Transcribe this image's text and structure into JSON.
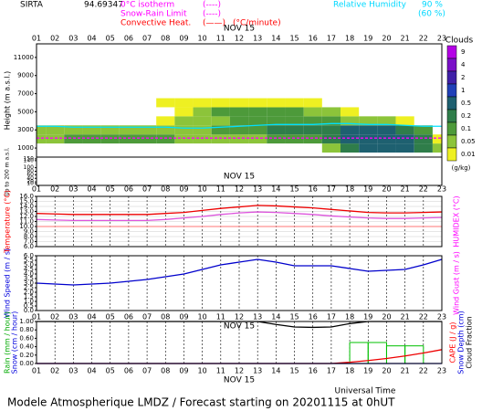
{
  "chart_data": [
    {
      "type": "heatmap",
      "site": "SIRTA",
      "coords": "94.69347",
      "date": "NOV 15",
      "categories": [
        "01",
        "02",
        "03",
        "04",
        "05",
        "06",
        "07",
        "08",
        "09",
        "10",
        "11",
        "12",
        "13",
        "14",
        "15",
        "16",
        "17",
        "18",
        "19",
        "20",
        "21",
        "22",
        "23"
      ],
      "legend": [
        {
          "name": "0°C isotherm",
          "symbol": "(----)",
          "color": "#ff00ff"
        },
        {
          "name": "Snow-Rain Limit",
          "symbol": "(----)",
          "color": "#ff00ff"
        },
        {
          "name": "Convective Heat.",
          "symbol": "(——)",
          "unit": "(°C/minute)",
          "color": "#ff0000"
        },
        {
          "name": "Relative Humidity",
          "symbol": "90 %",
          "symbol2": "(60 %)",
          "color": "#00e0ff"
        }
      ],
      "ylabel": "Height (m a.s.l.)",
      "y2label": "Up to 200 m a.s.l.",
      "ylim": [
        0,
        12500
      ],
      "yticks": [
        1000,
        3000,
        5000,
        7000,
        9000,
        11000
      ],
      "y2lim": [
        0,
        160
      ],
      "y2ticks": [
        10,
        20,
        40,
        60,
        80,
        100,
        140,
        150
      ],
      "rows": [
        1000,
        2000,
        3000,
        4000,
        5000,
        6000
      ],
      "values": [
        [
          0,
          0,
          0,
          0,
          0,
          0,
          0,
          0,
          0,
          0,
          0,
          0,
          0,
          0,
          0,
          0,
          0.05,
          0.2,
          0.5,
          0.5,
          0.5,
          0.2,
          0.05
        ],
        [
          0.05,
          0.05,
          0.1,
          0.1,
          0.1,
          0.1,
          0.1,
          0.1,
          0.05,
          0.05,
          0.05,
          0.05,
          0.05,
          0.1,
          0.1,
          0.1,
          0.2,
          0.5,
          0.5,
          0.5,
          0.5,
          0.2,
          0.01
        ],
        [
          0.05,
          0.05,
          0.05,
          0.05,
          0.05,
          0.05,
          0.05,
          0.05,
          0.05,
          0.05,
          0.1,
          0.1,
          0.1,
          0.2,
          0.2,
          0.2,
          0.2,
          0.5,
          0.5,
          0.5,
          0.2,
          0.1,
          0
        ],
        [
          0,
          0,
          0,
          0,
          0,
          0,
          0,
          0.01,
          0.05,
          0.05,
          0.05,
          0.1,
          0.1,
          0.1,
          0.1,
          0.1,
          0.1,
          0.05,
          0.05,
          0.05,
          0.01,
          0,
          0
        ],
        [
          0,
          0,
          0,
          0,
          0,
          0,
          0,
          0,
          0.01,
          0.05,
          0.1,
          0.1,
          0.1,
          0.1,
          0.1,
          0.05,
          0.05,
          0.01,
          0,
          0,
          0,
          0,
          0
        ],
        [
          0,
          0,
          0,
          0,
          0,
          0,
          0,
          0.01,
          0.01,
          0.01,
          0.01,
          0.01,
          0.01,
          0.01,
          0.01,
          0.01,
          0,
          0,
          0,
          0,
          0,
          0,
          0
        ]
      ],
      "colorbar": {
        "title": "Clouds",
        "unit": "(g/kg)",
        "levels": [
          9,
          4,
          2,
          1,
          0.5,
          0.2,
          0.1,
          0.05,
          0.01
        ],
        "colors": [
          "#b400e6",
          "#7a10c8",
          "#4020a8",
          "#2040b8",
          "#1e6070",
          "#2f7d4a",
          "#4d9a3a",
          "#8cc43a",
          "#eef022"
        ]
      },
      "series": [
        {
          "color": "#ff00ff",
          "values": [
            2100,
            2100,
            2100,
            2100,
            2100,
            2100,
            2100,
            2100,
            2100,
            2100,
            2100,
            2100,
            2100,
            2100,
            2100,
            2100,
            2100,
            2100,
            2100,
            2100,
            2100,
            2100,
            2100
          ]
        },
        {
          "color": "#00e0ff",
          "values": [
            3400,
            3400,
            3300,
            3300,
            3300,
            3300,
            3300,
            3300,
            3200,
            3200,
            3300,
            3400,
            3500,
            3600,
            3600,
            3600,
            3700,
            3700,
            3600,
            3600,
            3500,
            3400,
            3400
          ]
        }
      ]
    },
    {
      "type": "line",
      "date": "NOV 15",
      "categories": [
        "01",
        "02",
        "03",
        "04",
        "05",
        "06",
        "07",
        "08",
        "09",
        "10",
        "11",
        "12",
        "13",
        "14",
        "15",
        "16",
        "17",
        "18",
        "19",
        "20",
        "21",
        "22",
        "23"
      ],
      "ylabel": "Temperature (°C)",
      "ylabel_color": "#ff0000",
      "y2label": "HUMIDEX (°C)",
      "y2label_color": "#ff00ff",
      "ylim": [
        6,
        16
      ],
      "yticks": [
        {
          "value": 6,
          "label": "6.0"
        },
        {
          "value": 7,
          "label": "7.0"
        },
        {
          "value": 8,
          "label": "8.0"
        },
        {
          "value": 9,
          "label": "9.0"
        },
        {
          "value": 10,
          "label": "10.0"
        },
        {
          "value": 11,
          "label": "11.0"
        },
        {
          "value": 12,
          "label": "12.0"
        },
        {
          "value": 13,
          "label": "13.0"
        },
        {
          "value": 14,
          "label": "14.0"
        },
        {
          "value": 15,
          "label": "15.0"
        },
        {
          "value": 16,
          "label": "16.0"
        }
      ],
      "series": [
        {
          "color": "#ee0000",
          "values": [
            12.6,
            12.5,
            12.4,
            12.4,
            12.4,
            12.4,
            12.4,
            12.6,
            12.8,
            13.2,
            13.6,
            13.9,
            14.2,
            14.1,
            13.9,
            13.7,
            13.4,
            13.1,
            12.8,
            12.7,
            12.7,
            12.8,
            12.9
          ]
        },
        {
          "color": "#dd55dd",
          "values": [
            11.4,
            11.3,
            11.2,
            11.2,
            11.2,
            11.2,
            11.2,
            11.4,
            11.7,
            12.0,
            12.4,
            12.7,
            12.9,
            12.8,
            12.6,
            12.4,
            12.1,
            11.9,
            11.7,
            11.6,
            11.6,
            11.7,
            11.8
          ]
        },
        {
          "color": "#ff9090",
          "values": [
            10,
            10,
            10,
            10,
            10,
            10,
            10,
            10,
            10,
            10,
            10,
            10,
            10,
            10,
            10,
            10,
            10,
            10,
            10,
            10,
            10,
            10,
            10
          ]
        }
      ]
    },
    {
      "type": "line",
      "date": "NOV 15",
      "categories": [
        "01",
        "02",
        "03",
        "04",
        "05",
        "06",
        "07",
        "08",
        "09",
        "10",
        "11",
        "12",
        "13",
        "14",
        "15",
        "16",
        "17",
        "18",
        "19",
        "20",
        "21",
        "22",
        "23"
      ],
      "ylabel": "Wind Speed (m / s)",
      "ylabel_color": "#0000dd",
      "y2label": "Wind Gust (m / s)",
      "y2label_color": "#ff00ff",
      "ylim": [
        0,
        6
      ],
      "yticks": [
        {
          "value": 0,
          "label": "0.0"
        },
        {
          "value": 0.5,
          "label": "0.5"
        },
        {
          "value": 1,
          "label": "1.0"
        },
        {
          "value": 1.5,
          "label": "1.5"
        },
        {
          "value": 2,
          "label": "2.0"
        },
        {
          "value": 2.5,
          "label": "2.5"
        },
        {
          "value": 3,
          "label": "3.0"
        },
        {
          "value": 3.5,
          "label": "3.5"
        },
        {
          "value": 4,
          "label": "4.0"
        },
        {
          "value": 4.5,
          "label": "4.5"
        },
        {
          "value": 5,
          "label": "5.0"
        },
        {
          "value": 5.5,
          "label": "5.5"
        },
        {
          "value": 6,
          "label": "6.0"
        }
      ],
      "series": [
        {
          "color": "#0000cc",
          "values": [
            3.0,
            2.9,
            2.8,
            2.9,
            3.0,
            3.2,
            3.4,
            3.7,
            4.0,
            4.5,
            5.0,
            5.3,
            5.6,
            5.3,
            4.9,
            4.9,
            4.9,
            4.6,
            4.3,
            4.4,
            4.5,
            5.0,
            5.6
          ]
        }
      ]
    },
    {
      "type": "line",
      "date": "NOV 15",
      "xlabel": "Universal Time",
      "categories": [
        "01",
        "02",
        "03",
        "04",
        "05",
        "06",
        "07",
        "08",
        "09",
        "10",
        "11",
        "12",
        "13",
        "14",
        "15",
        "16",
        "17",
        "18",
        "19",
        "20",
        "21",
        "22",
        "23"
      ],
      "ylabel": "Rain (mm / hour)",
      "ylabel_color": "#00aa00",
      "ylabel2": "Snow (cm / hour)",
      "ylabel2_color": "#0000dd",
      "y2label": "CAPE (J / g)",
      "y2label_color": "#ff0000",
      "y2label2": "Snow Depth (cm)",
      "y2label2_color": "#0000dd",
      "y2label3": "Cloud Fraction",
      "y2label3_color": "#000000",
      "ylim": [
        0,
        1
      ],
      "yticks": [
        {
          "value": 0,
          "label": "0.00"
        },
        {
          "value": 0.2,
          "label": "0.20"
        },
        {
          "value": 0.4,
          "label": "0.40"
        },
        {
          "value": 0.6,
          "label": "0.60"
        },
        {
          "value": 0.8,
          "label": "0.80"
        },
        {
          "value": 1,
          "label": "1.00"
        }
      ],
      "bars": {
        "color": "#00c000",
        "values": [
          0,
          0,
          0,
          0,
          0,
          0,
          0,
          0,
          0,
          0,
          0,
          0,
          0,
          0,
          0,
          0,
          0,
          0.5,
          0.5,
          0.42,
          0.42,
          0,
          0
        ]
      },
      "series": [
        {
          "color": "#000000",
          "values": [
            1,
            1,
            1,
            1,
            1,
            1,
            1,
            1,
            1,
            1,
            1,
            1,
            1,
            0.93,
            0.87,
            0.86,
            0.87,
            0.95,
            1,
            1,
            1,
            1,
            1
          ]
        },
        {
          "color": "#ee0000",
          "values": [
            0,
            0,
            0,
            0,
            0,
            0,
            0,
            0,
            0,
            0,
            0,
            0,
            0,
            0,
            0,
            0,
            0,
            0.03,
            0.07,
            0.12,
            0.18,
            0.25,
            0.33
          ]
        },
        {
          "color": "#0000dd",
          "values": [
            0,
            0,
            0,
            0,
            0,
            0,
            0,
            0,
            0,
            0,
            0,
            0,
            0,
            0,
            0,
            0,
            0,
            0,
            0,
            0,
            0,
            0,
            0
          ]
        }
      ]
    }
  ],
  "footer": "Modele Atmospherique LMDZ / Forecast starting on 20201115 at 0hUT"
}
